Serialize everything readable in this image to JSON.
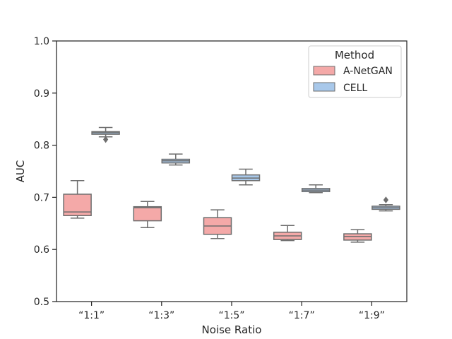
{
  "chart_data": {
    "type": "box",
    "xlabel": "Noise Ratio",
    "ylabel": "AUC",
    "ylim": [
      0.5,
      1.0
    ],
    "yticks": [
      "0.5",
      "0.6",
      "0.7",
      "0.8",
      "0.9",
      "1.0"
    ],
    "categories": [
      "“1:1”",
      "“1:3”",
      "“1:5”",
      "“1:7”",
      "“1:9”"
    ],
    "grid": false,
    "legend": {
      "title": "Method",
      "placement": "top-right"
    },
    "series": [
      {
        "name": "A-NetGAN",
        "color": "#f4a9a8",
        "boxes": [
          {
            "whisker_low": 0.66,
            "q1": 0.665,
            "median": 0.672,
            "q3": 0.706,
            "whisker_high": 0.732,
            "outliers": []
          },
          {
            "whisker_low": 0.642,
            "q1": 0.655,
            "median": 0.68,
            "q3": 0.682,
            "whisker_high": 0.692,
            "outliers": []
          },
          {
            "whisker_low": 0.621,
            "q1": 0.629,
            "median": 0.645,
            "q3": 0.661,
            "whisker_high": 0.676,
            "outliers": []
          },
          {
            "whisker_low": 0.617,
            "q1": 0.619,
            "median": 0.626,
            "q3": 0.633,
            "whisker_high": 0.646,
            "outliers": []
          },
          {
            "whisker_low": 0.614,
            "q1": 0.618,
            "median": 0.625,
            "q3": 0.63,
            "whisker_high": 0.638,
            "outliers": []
          }
        ]
      },
      {
        "name": "CELL",
        "color": "#a8c8ea",
        "boxes": [
          {
            "whisker_low": 0.816,
            "q1": 0.821,
            "median": 0.824,
            "q3": 0.826,
            "whisker_high": 0.834,
            "outliers": [
              0.811
            ]
          },
          {
            "whisker_low": 0.762,
            "q1": 0.766,
            "median": 0.77,
            "q3": 0.773,
            "whisker_high": 0.783,
            "outliers": []
          },
          {
            "whisker_low": 0.724,
            "q1": 0.732,
            "median": 0.737,
            "q3": 0.743,
            "whisker_high": 0.754,
            "outliers": []
          },
          {
            "whisker_low": 0.709,
            "q1": 0.711,
            "median": 0.714,
            "q3": 0.717,
            "whisker_high": 0.724,
            "outliers": []
          },
          {
            "whisker_low": 0.674,
            "q1": 0.677,
            "median": 0.68,
            "q3": 0.683,
            "whisker_high": 0.686,
            "outliers": [
              0.695
            ]
          }
        ]
      }
    ]
  }
}
